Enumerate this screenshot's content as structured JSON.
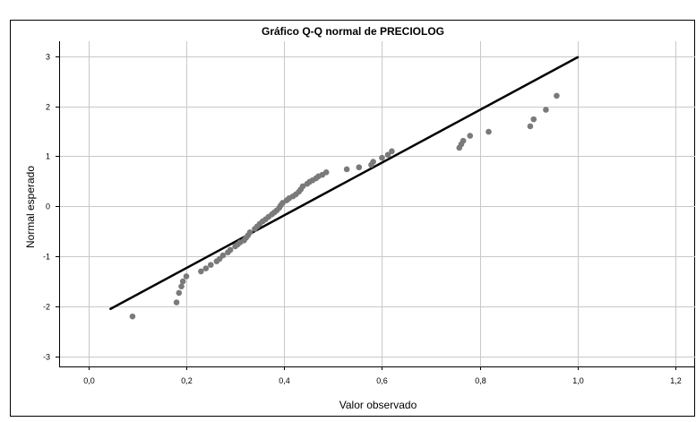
{
  "chart_data": {
    "type": "scatter",
    "title": "Gráfico Q-Q normal de PRECIOLOG",
    "xlabel": "Valor observado",
    "ylabel": "Normal esperado",
    "xlim": [
      -0.06,
      1.24
    ],
    "ylim": [
      -3.2,
      3.3
    ],
    "xticks": [
      "0,0",
      "0,2",
      "0,4",
      "0,6",
      "0,8",
      "1,0",
      "1,2"
    ],
    "yticks": [
      "-3",
      "-2",
      "-1",
      "0",
      "1",
      "2",
      "3"
    ],
    "grid": true,
    "legend": "none",
    "colors": {
      "points": "#7a7a7a",
      "line": "#000000",
      "grid": "#c8c8c8",
      "frame": "#000000"
    },
    "reference_line": {
      "x": [
        0.045,
        1.0
      ],
      "y": [
        -2.05,
        2.98
      ]
    },
    "points": [
      [
        0.09,
        -2.2
      ],
      [
        0.18,
        -1.92
      ],
      [
        0.185,
        -1.73
      ],
      [
        0.19,
        -1.6
      ],
      [
        0.193,
        -1.5
      ],
      [
        0.2,
        -1.4
      ],
      [
        0.23,
        -1.3
      ],
      [
        0.24,
        -1.24
      ],
      [
        0.25,
        -1.17
      ],
      [
        0.262,
        -1.1
      ],
      [
        0.268,
        -1.05
      ],
      [
        0.275,
        -0.98
      ],
      [
        0.285,
        -0.92
      ],
      [
        0.29,
        -0.87
      ],
      [
        0.3,
        -0.8
      ],
      [
        0.305,
        -0.76
      ],
      [
        0.31,
        -0.72
      ],
      [
        0.318,
        -0.68
      ],
      [
        0.322,
        -0.63
      ],
      [
        0.326,
        -0.58
      ],
      [
        0.33,
        -0.52
      ],
      [
        0.34,
        -0.45
      ],
      [
        0.345,
        -0.4
      ],
      [
        0.35,
        -0.35
      ],
      [
        0.356,
        -0.3
      ],
      [
        0.362,
        -0.26
      ],
      [
        0.368,
        -0.21
      ],
      [
        0.375,
        -0.16
      ],
      [
        0.38,
        -0.12
      ],
      [
        0.385,
        -0.08
      ],
      [
        0.39,
        -0.03
      ],
      [
        0.393,
        0.02
      ],
      [
        0.397,
        0.07
      ],
      [
        0.405,
        0.12
      ],
      [
        0.41,
        0.16
      ],
      [
        0.418,
        0.2
      ],
      [
        0.424,
        0.24
      ],
      [
        0.43,
        0.29
      ],
      [
        0.434,
        0.34
      ],
      [
        0.438,
        0.4
      ],
      [
        0.447,
        0.45
      ],
      [
        0.452,
        0.49
      ],
      [
        0.458,
        0.52
      ],
      [
        0.465,
        0.56
      ],
      [
        0.47,
        0.6
      ],
      [
        0.478,
        0.63
      ],
      [
        0.486,
        0.68
      ],
      [
        0.528,
        0.74
      ],
      [
        0.553,
        0.78
      ],
      [
        0.578,
        0.83
      ],
      [
        0.582,
        0.89
      ],
      [
        0.6,
        0.97
      ],
      [
        0.612,
        1.03
      ],
      [
        0.62,
        1.1
      ],
      [
        0.758,
        1.17
      ],
      [
        0.762,
        1.24
      ],
      [
        0.766,
        1.31
      ],
      [
        0.78,
        1.41
      ],
      [
        0.818,
        1.49
      ],
      [
        0.903,
        1.6
      ],
      [
        0.91,
        1.74
      ],
      [
        0.935,
        1.93
      ],
      [
        0.957,
        2.21
      ]
    ]
  }
}
